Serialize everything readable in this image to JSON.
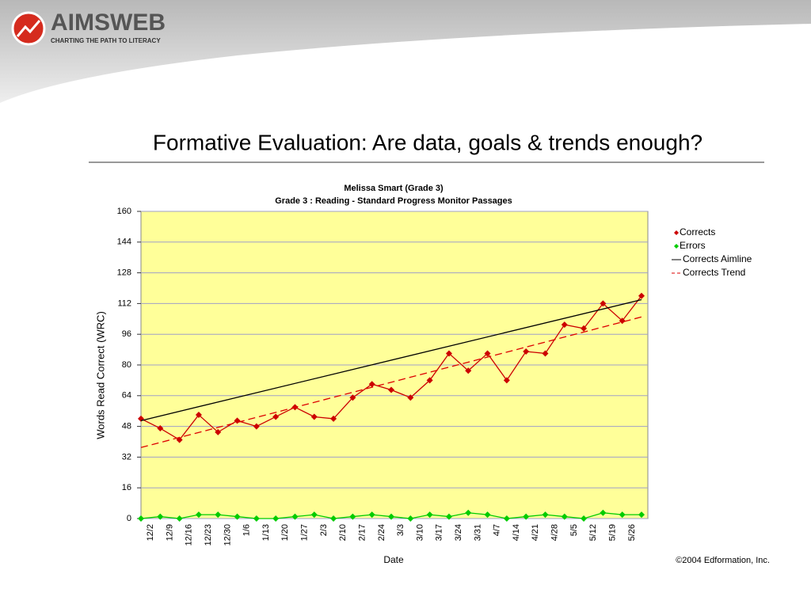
{
  "header": {
    "logo": "AIMSWEB",
    "tagline": "CHARTING THE PATH TO LITERACY"
  },
  "slide_title": "Formative Evaluation:  Are data, goals & trends enough?",
  "footer": "©2004 Edformation, Inc.",
  "chart_data": {
    "type": "line",
    "title": "Melissa Smart (Grade 3)",
    "subtitle": "Grade 3 : Reading - Standard Progress Monitor Passages",
    "y_label": "Words Read Correct (WRC)",
    "x_label": "Date",
    "categories": [
      "12/2",
      "12/9",
      "12/16",
      "12/23",
      "12/30",
      "1/6",
      "1/13",
      "1/20",
      "1/27",
      "2/3",
      "2/10",
      "2/17",
      "2/24",
      "3/3",
      "3/10",
      "3/17",
      "3/24",
      "3/31",
      "4/7",
      "4/14",
      "4/21",
      "4/28",
      "5/5",
      "5/12",
      "5/19",
      "5/26",
      null
    ],
    "series": [
      {
        "name": "Corrects",
        "color": "#cc0000",
        "marker": true,
        "values": [
          52,
          47,
          41,
          54,
          45,
          51,
          48,
          53,
          58,
          53,
          52,
          63,
          70,
          67,
          63,
          72,
          86,
          77,
          86,
          72,
          87,
          86,
          101,
          99,
          112,
          103,
          116
        ]
      },
      {
        "name": "Errors",
        "color": "#00cc00",
        "marker": true,
        "values": [
          0,
          1,
          0,
          2,
          2,
          1,
          0,
          0,
          1,
          2,
          0,
          1,
          2,
          1,
          0,
          2,
          1,
          3,
          2,
          0,
          1,
          2,
          1,
          0,
          3,
          2,
          2
        ]
      },
      {
        "name": "Corrects Aimline",
        "color": "#000000",
        "dash": false,
        "x": [
          0,
          26
        ],
        "values": [
          51,
          114
        ]
      },
      {
        "name": "Corrects Trend",
        "color": "#dd0000",
        "dash": true,
        "x": [
          0,
          26
        ],
        "values": [
          37,
          105
        ]
      }
    ],
    "ylim": [
      0,
      160
    ],
    "yticks": [
      0,
      16,
      32,
      48,
      64,
      80,
      96,
      112,
      128,
      144,
      160
    ],
    "grid": true,
    "legend": "right"
  }
}
